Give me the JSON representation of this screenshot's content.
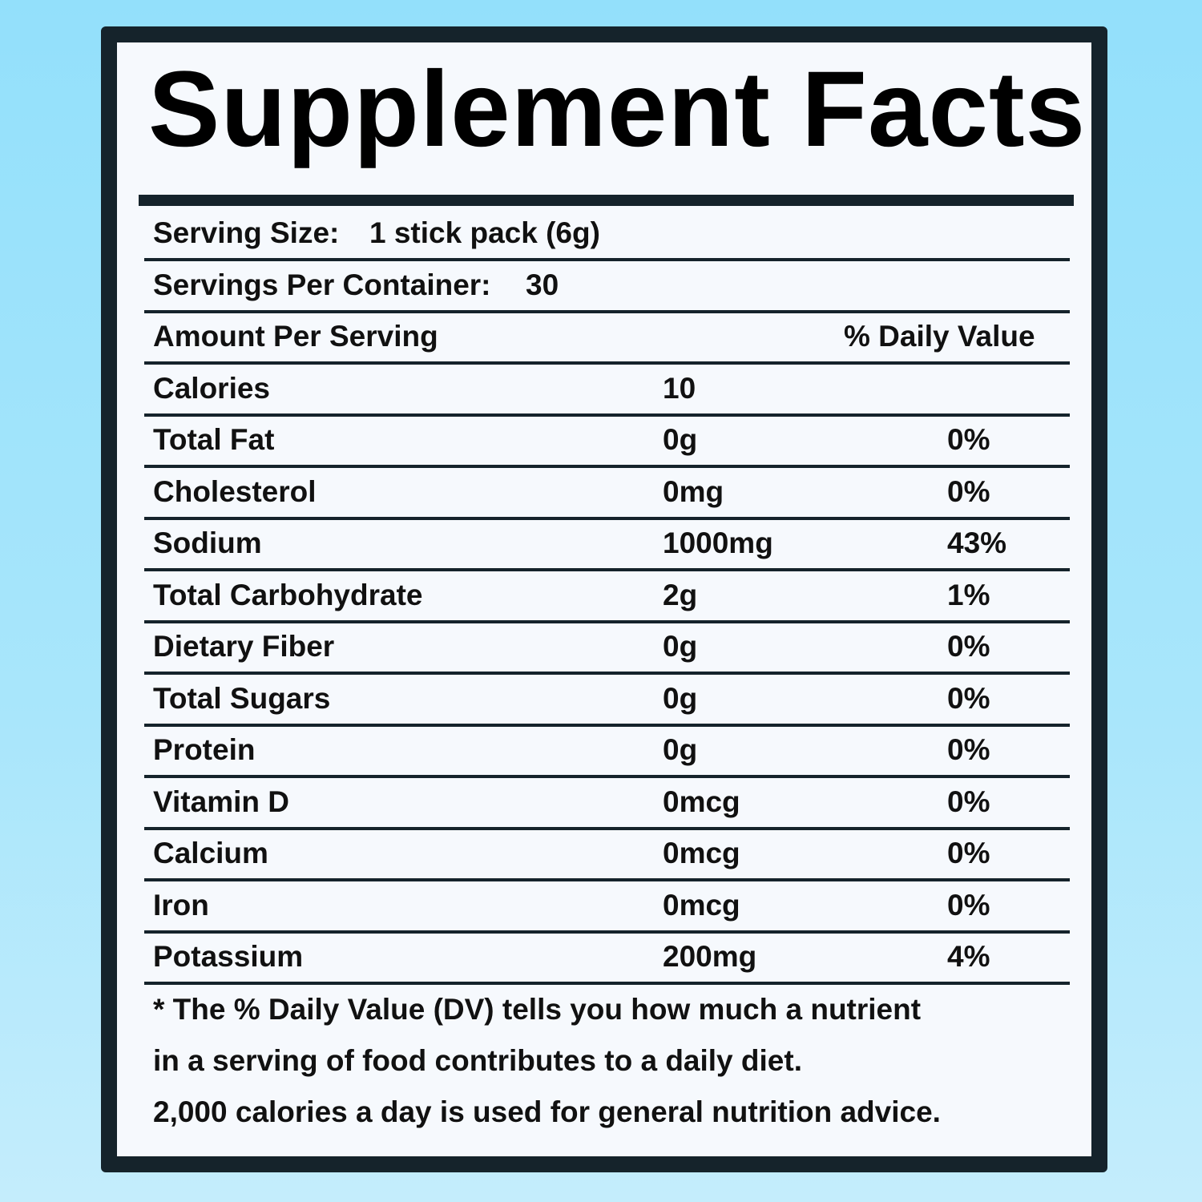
{
  "title": "Supplement Facts",
  "serving_size": {
    "label": "Serving Size:",
    "value": "1 stick pack (6g)"
  },
  "servings_per_container": {
    "label": "Servings Per Container:",
    "value": "30"
  },
  "header": {
    "amount": "Amount Per Serving",
    "daily_value": "% Daily Value"
  },
  "rows": [
    [
      "Calories",
      "10",
      null
    ],
    [
      "Total Fat",
      "0g",
      "0%"
    ],
    [
      "Cholesterol",
      "0mg",
      "0%"
    ],
    [
      "Sodium",
      "1000mg",
      "43%"
    ],
    [
      "Total Carbohydrate",
      "2g",
      "1%"
    ],
    [
      "Dietary Fiber",
      "0g",
      "0%"
    ],
    [
      "Total Sugars",
      "0g",
      "0%"
    ],
    [
      "Protein",
      "0g",
      "0%"
    ],
    [
      "Vitamin D",
      "0mcg",
      "0%"
    ],
    [
      "Calcium",
      "0mcg",
      "0%"
    ],
    [
      "Iron",
      "0mcg",
      "0%"
    ],
    [
      "Potassium",
      "200mg",
      "4%"
    ]
  ],
  "footnote": [
    "* The % Daily Value (DV) tells you how much a nutrient",
    "in a serving of food contributes to a daily diet.",
    "2,000 calories a day is used for general nutrition advice."
  ]
}
